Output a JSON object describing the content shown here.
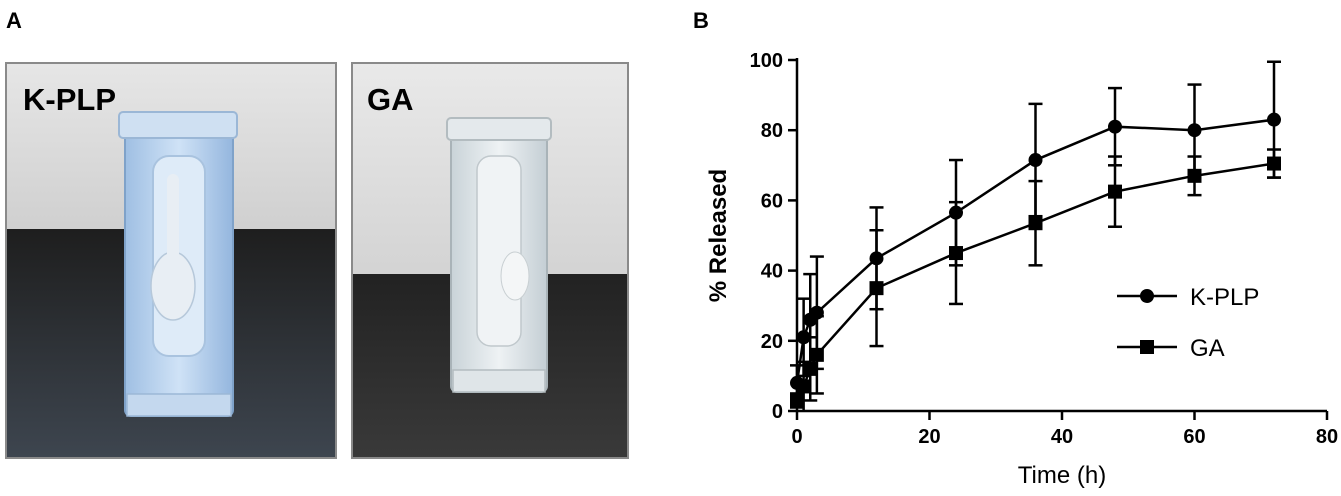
{
  "panel_a": {
    "letter": "A",
    "photos": [
      {
        "label": "K-PLP"
      },
      {
        "label": "GA"
      }
    ]
  },
  "panel_b": {
    "letter": "B"
  },
  "colors": {
    "line": "#000000",
    "wall": "#dcdcdc",
    "bench": "#2b2b2b",
    "vial_blue": "#b8d4ef",
    "vial_clear": "#e4ecf0"
  },
  "chart_data": {
    "type": "line",
    "xlabel": "Time (h)",
    "ylabel": "% Released",
    "xlim": [
      0,
      80
    ],
    "ylim": [
      0,
      100
    ],
    "xticks": [
      0,
      20,
      40,
      60,
      80
    ],
    "yticks": [
      0,
      20,
      40,
      60,
      80,
      100
    ],
    "legend_position": "right-middle",
    "series": [
      {
        "name": "K-PLP",
        "marker": "circle",
        "x": [
          0,
          1,
          2,
          3,
          12,
          24,
          36,
          48,
          60,
          72
        ],
        "y": [
          8,
          21,
          26,
          28,
          43.5,
          56.5,
          71.5,
          81,
          80,
          83
        ],
        "err": [
          5,
          11,
          13,
          16,
          14.5,
          15,
          16,
          11,
          13,
          16.5
        ]
      },
      {
        "name": "GA",
        "marker": "square",
        "x": [
          0,
          1,
          2,
          3,
          12,
          24,
          36,
          48,
          60,
          72
        ],
        "y": [
          3,
          7,
          12,
          16,
          35,
          45,
          53.5,
          62.5,
          67,
          70.5
        ],
        "err": [
          2,
          7,
          9,
          11,
          16.5,
          14.5,
          12,
          10,
          5.5,
          4
        ]
      }
    ]
  }
}
